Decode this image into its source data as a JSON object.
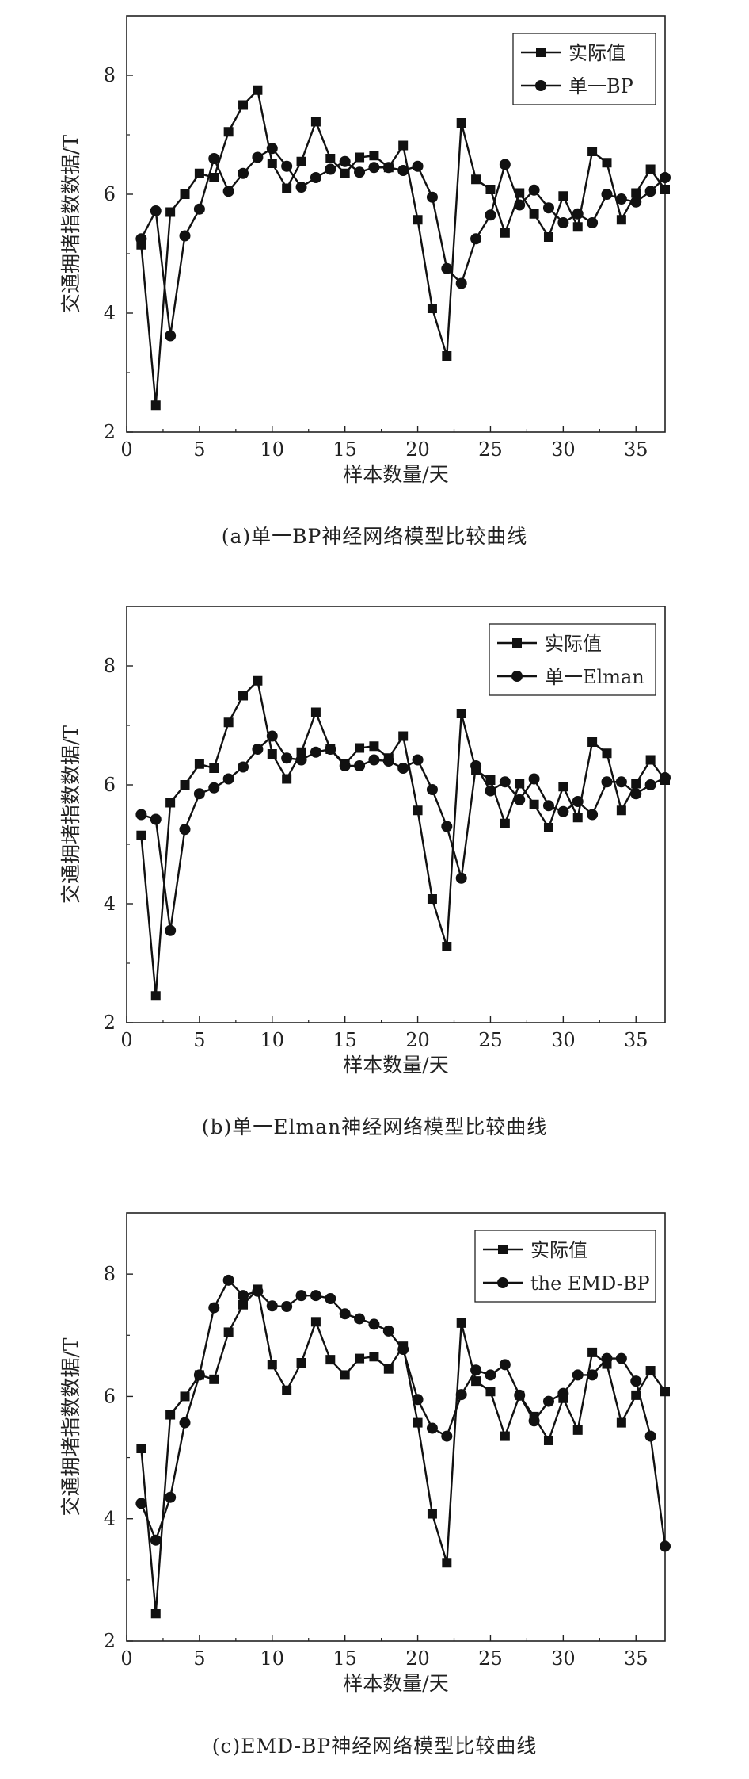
{
  "panels": [
    {
      "caption": "(a)单一BP神经网络模型比较曲线",
      "chart_data": {
        "type": "line",
        "xlabel": "样本数量/天",
        "ylabel": "交通拥堵指数数据/T",
        "xlim": [
          0,
          37
        ],
        "ylim": [
          2,
          9
        ],
        "x_ticks": [
          0,
          5,
          10,
          15,
          20,
          25,
          30,
          35
        ],
        "y_ticks": [
          2,
          4,
          6,
          8
        ],
        "legend_position": "top-right",
        "grid": false,
        "series": [
          {
            "name": "实际值",
            "marker": "square",
            "x": [
              1,
              2,
              3,
              4,
              5,
              6,
              7,
              8,
              9,
              10,
              11,
              12,
              13,
              14,
              15,
              16,
              17,
              18,
              19,
              20,
              21,
              22,
              23,
              24,
              25,
              26,
              27,
              28,
              29,
              30,
              31,
              32,
              33,
              34,
              35,
              36,
              37
            ],
            "values": [
              5.15,
              2.45,
              5.7,
              6.0,
              6.35,
              6.28,
              7.05,
              7.5,
              7.75,
              6.52,
              6.1,
              6.55,
              7.22,
              6.6,
              6.35,
              6.62,
              6.65,
              6.45,
              6.82,
              5.57,
              4.08,
              3.28,
              7.2,
              6.25,
              6.08,
              5.35,
              6.02,
              5.67,
              5.28,
              5.97,
              5.45,
              6.72,
              6.53,
              5.57,
              6.02,
              6.42,
              6.08
            ]
          },
          {
            "name": "单一BP",
            "marker": "circle",
            "x": [
              1,
              2,
              3,
              4,
              5,
              6,
              7,
              8,
              9,
              10,
              11,
              12,
              13,
              14,
              15,
              16,
              17,
              18,
              19,
              20,
              21,
              22,
              23,
              24,
              25,
              26,
              27,
              28,
              29,
              30,
              31,
              32,
              33,
              34,
              35,
              36,
              37
            ],
            "values": [
              5.25,
              5.72,
              3.62,
              5.3,
              5.75,
              6.6,
              6.05,
              6.35,
              6.62,
              6.77,
              6.47,
              6.12,
              6.28,
              6.42,
              6.55,
              6.37,
              6.45,
              6.45,
              6.4,
              6.47,
              5.95,
              4.75,
              4.5,
              5.25,
              5.65,
              6.5,
              5.82,
              6.07,
              5.77,
              5.52,
              5.67,
              5.52,
              6.0,
              5.92,
              5.87,
              6.05,
              6.28
            ]
          }
        ]
      }
    },
    {
      "caption": "(b)单一Elman神经网络模型比较曲线",
      "chart_data": {
        "type": "line",
        "xlabel": "样本数量/天",
        "ylabel": "交通拥堵指数数据/T",
        "xlim": [
          0,
          37
        ],
        "ylim": [
          2,
          9
        ],
        "x_ticks": [
          0,
          5,
          10,
          15,
          20,
          25,
          30,
          35
        ],
        "y_ticks": [
          2,
          4,
          6,
          8
        ],
        "legend_position": "top-right",
        "grid": false,
        "series": [
          {
            "name": "实际值",
            "marker": "square",
            "x": [
              1,
              2,
              3,
              4,
              5,
              6,
              7,
              8,
              9,
              10,
              11,
              12,
              13,
              14,
              15,
              16,
              17,
              18,
              19,
              20,
              21,
              22,
              23,
              24,
              25,
              26,
              27,
              28,
              29,
              30,
              31,
              32,
              33,
              34,
              35,
              36,
              37
            ],
            "values": [
              5.15,
              2.45,
              5.7,
              6.0,
              6.35,
              6.28,
              7.05,
              7.5,
              7.75,
              6.52,
              6.1,
              6.55,
              7.22,
              6.6,
              6.35,
              6.62,
              6.65,
              6.45,
              6.82,
              5.57,
              4.08,
              3.28,
              7.2,
              6.25,
              6.08,
              5.35,
              6.02,
              5.67,
              5.28,
              5.97,
              5.45,
              6.72,
              6.53,
              5.57,
              6.02,
              6.42,
              6.08
            ]
          },
          {
            "name": "单一Elman",
            "marker": "circle",
            "x": [
              1,
              2,
              3,
              4,
              5,
              6,
              7,
              8,
              9,
              10,
              11,
              12,
              13,
              14,
              15,
              16,
              17,
              18,
              19,
              20,
              21,
              22,
              23,
              24,
              25,
              26,
              27,
              28,
              29,
              30,
              31,
              32,
              33,
              34,
              35,
              36,
              37
            ],
            "values": [
              5.5,
              5.42,
              3.55,
              5.25,
              5.85,
              5.95,
              6.1,
              6.3,
              6.6,
              6.82,
              6.45,
              6.42,
              6.55,
              6.6,
              6.32,
              6.32,
              6.42,
              6.4,
              6.28,
              6.42,
              5.92,
              5.3,
              4.43,
              6.32,
              5.9,
              6.05,
              5.75,
              6.1,
              5.65,
              5.55,
              5.72,
              5.5,
              6.05,
              6.05,
              5.85,
              6.0,
              6.12
            ]
          }
        ]
      }
    },
    {
      "caption": "(c)EMD-BP神经网络模型比较曲线",
      "chart_data": {
        "type": "line",
        "xlabel": "样本数量/天",
        "ylabel": "交通拥堵指数数据/T",
        "xlim": [
          0,
          37
        ],
        "ylim": [
          2,
          9
        ],
        "x_ticks": [
          0,
          5,
          10,
          15,
          20,
          25,
          30,
          35
        ],
        "y_ticks": [
          2,
          4,
          6,
          8
        ],
        "legend_position": "top-right",
        "grid": false,
        "series": [
          {
            "name": "实际值",
            "marker": "square",
            "x": [
              1,
              2,
              3,
              4,
              5,
              6,
              7,
              8,
              9,
              10,
              11,
              12,
              13,
              14,
              15,
              16,
              17,
              18,
              19,
              20,
              21,
              22,
              23,
              24,
              25,
              26,
              27,
              28,
              29,
              30,
              31,
              32,
              33,
              34,
              35,
              36,
              37
            ],
            "values": [
              5.15,
              2.45,
              5.7,
              6.0,
              6.35,
              6.28,
              7.05,
              7.5,
              7.75,
              6.52,
              6.1,
              6.55,
              7.22,
              6.6,
              6.35,
              6.62,
              6.65,
              6.45,
              6.82,
              5.57,
              4.08,
              3.28,
              7.2,
              6.25,
              6.08,
              5.35,
              6.02,
              5.67,
              5.28,
              5.97,
              5.45,
              6.72,
              6.53,
              5.57,
              6.02,
              6.42,
              6.08
            ]
          },
          {
            "name": "the EMD-BP",
            "marker": "circle",
            "x": [
              1,
              2,
              3,
              4,
              5,
              6,
              7,
              8,
              9,
              10,
              11,
              12,
              13,
              14,
              15,
              16,
              17,
              18,
              19,
              20,
              21,
              22,
              23,
              24,
              25,
              26,
              27,
              28,
              29,
              30,
              31,
              32,
              33,
              34,
              35,
              36,
              37
            ],
            "values": [
              4.25,
              3.65,
              4.35,
              5.57,
              6.35,
              7.45,
              7.9,
              7.65,
              7.72,
              7.48,
              7.47,
              7.65,
              7.65,
              7.6,
              7.35,
              7.27,
              7.18,
              7.07,
              6.77,
              5.95,
              5.48,
              5.35,
              6.03,
              6.43,
              6.35,
              6.52,
              6.02,
              5.6,
              5.92,
              6.05,
              6.35,
              6.35,
              6.62,
              6.62,
              6.25,
              5.35,
              3.55
            ]
          }
        ]
      }
    }
  ]
}
